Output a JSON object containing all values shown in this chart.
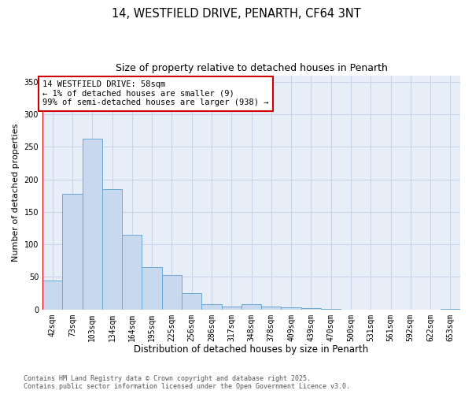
{
  "title": "14, WESTFIELD DRIVE, PENARTH, CF64 3NT",
  "subtitle": "Size of property relative to detached houses in Penarth",
  "xlabel": "Distribution of detached houses by size in Penarth",
  "ylabel": "Number of detached properties",
  "bar_labels": [
    "42sqm",
    "73sqm",
    "103sqm",
    "134sqm",
    "164sqm",
    "195sqm",
    "225sqm",
    "256sqm",
    "286sqm",
    "317sqm",
    "348sqm",
    "378sqm",
    "409sqm",
    "439sqm",
    "470sqm",
    "500sqm",
    "531sqm",
    "561sqm",
    "592sqm",
    "622sqm",
    "653sqm"
  ],
  "bar_values": [
    45,
    178,
    263,
    185,
    115,
    65,
    53,
    25,
    8,
    5,
    8,
    4,
    3,
    2,
    1,
    0,
    0,
    0,
    0,
    0,
    1
  ],
  "bar_color": "#c8d9ef",
  "bar_edge_color": "#6aaad4",
  "ylim": [
    0,
    360
  ],
  "yticks": [
    0,
    50,
    100,
    150,
    200,
    250,
    300,
    350
  ],
  "annotation_text": "14 WESTFIELD DRIVE: 58sqm\n← 1% of detached houses are smaller (9)\n99% of semi-detached houses are larger (938) →",
  "annotation_box_color": "#ffffff",
  "annotation_box_edge": "#cc0000",
  "vline_color": "#cc0000",
  "vline_x": -0.5,
  "grid_color": "#c8d4e8",
  "footer_line1": "Contains HM Land Registry data © Crown copyright and database right 2025.",
  "footer_line2": "Contains public sector information licensed under the Open Government Licence v3.0.",
  "background_color": "#ffffff",
  "plot_bg_color": "#e8eef8"
}
